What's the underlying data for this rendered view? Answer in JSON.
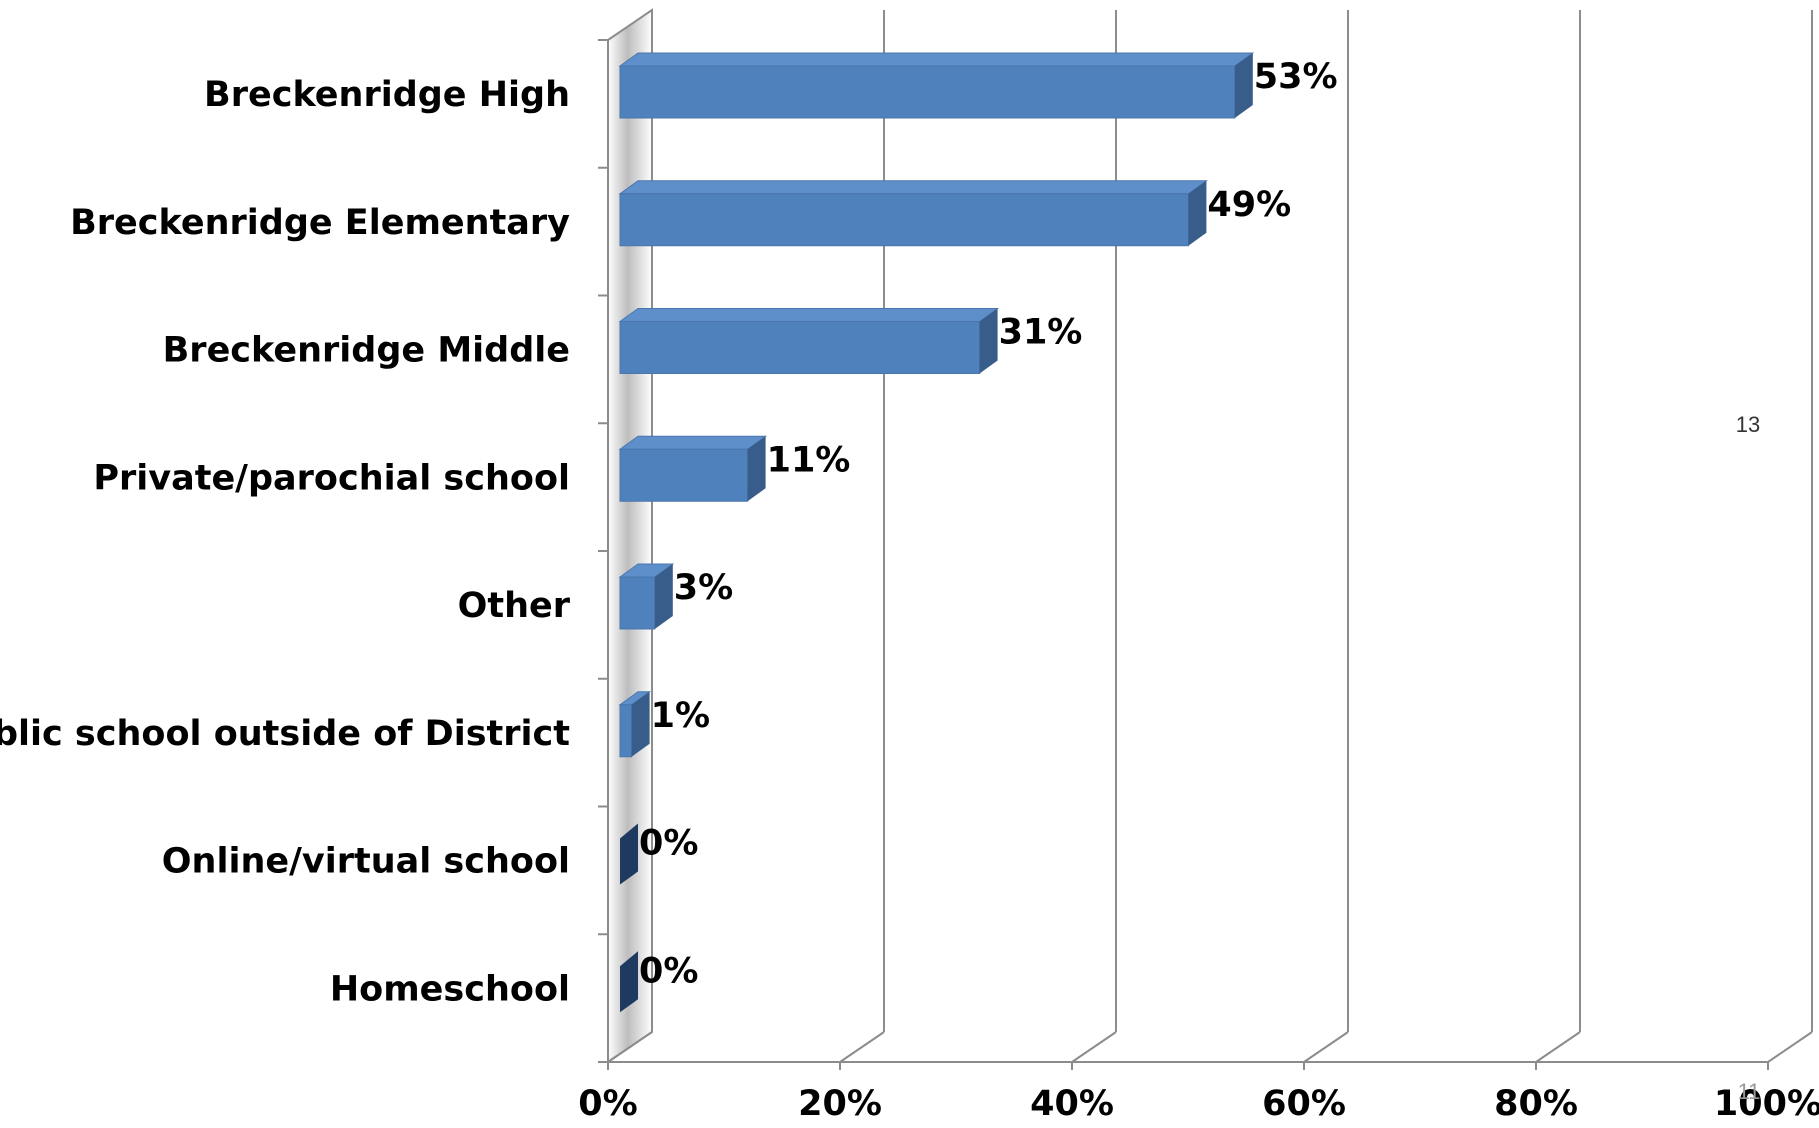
{
  "chart_data": {
    "type": "bar",
    "orientation": "horizontal",
    "style": "3d",
    "categories": [
      "Breckenridge High",
      "Breckenridge Elementary",
      "Breckenridge Middle",
      "Private/parochial school",
      "Other",
      "Public school outside of District",
      "Online/virtual school",
      "Homeschool"
    ],
    "values": [
      53,
      49,
      31,
      11,
      3,
      1,
      0,
      0
    ],
    "value_labels": [
      "53%",
      "49%",
      "31%",
      "11%",
      "3%",
      "1%",
      "0%",
      "0%"
    ],
    "x_ticks": [
      "0%",
      "20%",
      "40%",
      "60%",
      "80%",
      "100%"
    ],
    "xlim": [
      0,
      100
    ],
    "title": "",
    "xlabel": "",
    "ylabel": "",
    "grid": true,
    "legend": "none",
    "colors": {
      "bar_front": "#4F81BD",
      "bar_top": "#5E8FCB",
      "bar_side": "#385D8A",
      "zero_bar": "#1F3A60",
      "grid": "#8C8C8C"
    }
  },
  "page_numbers": {
    "right": "13",
    "bottom": "11"
  }
}
